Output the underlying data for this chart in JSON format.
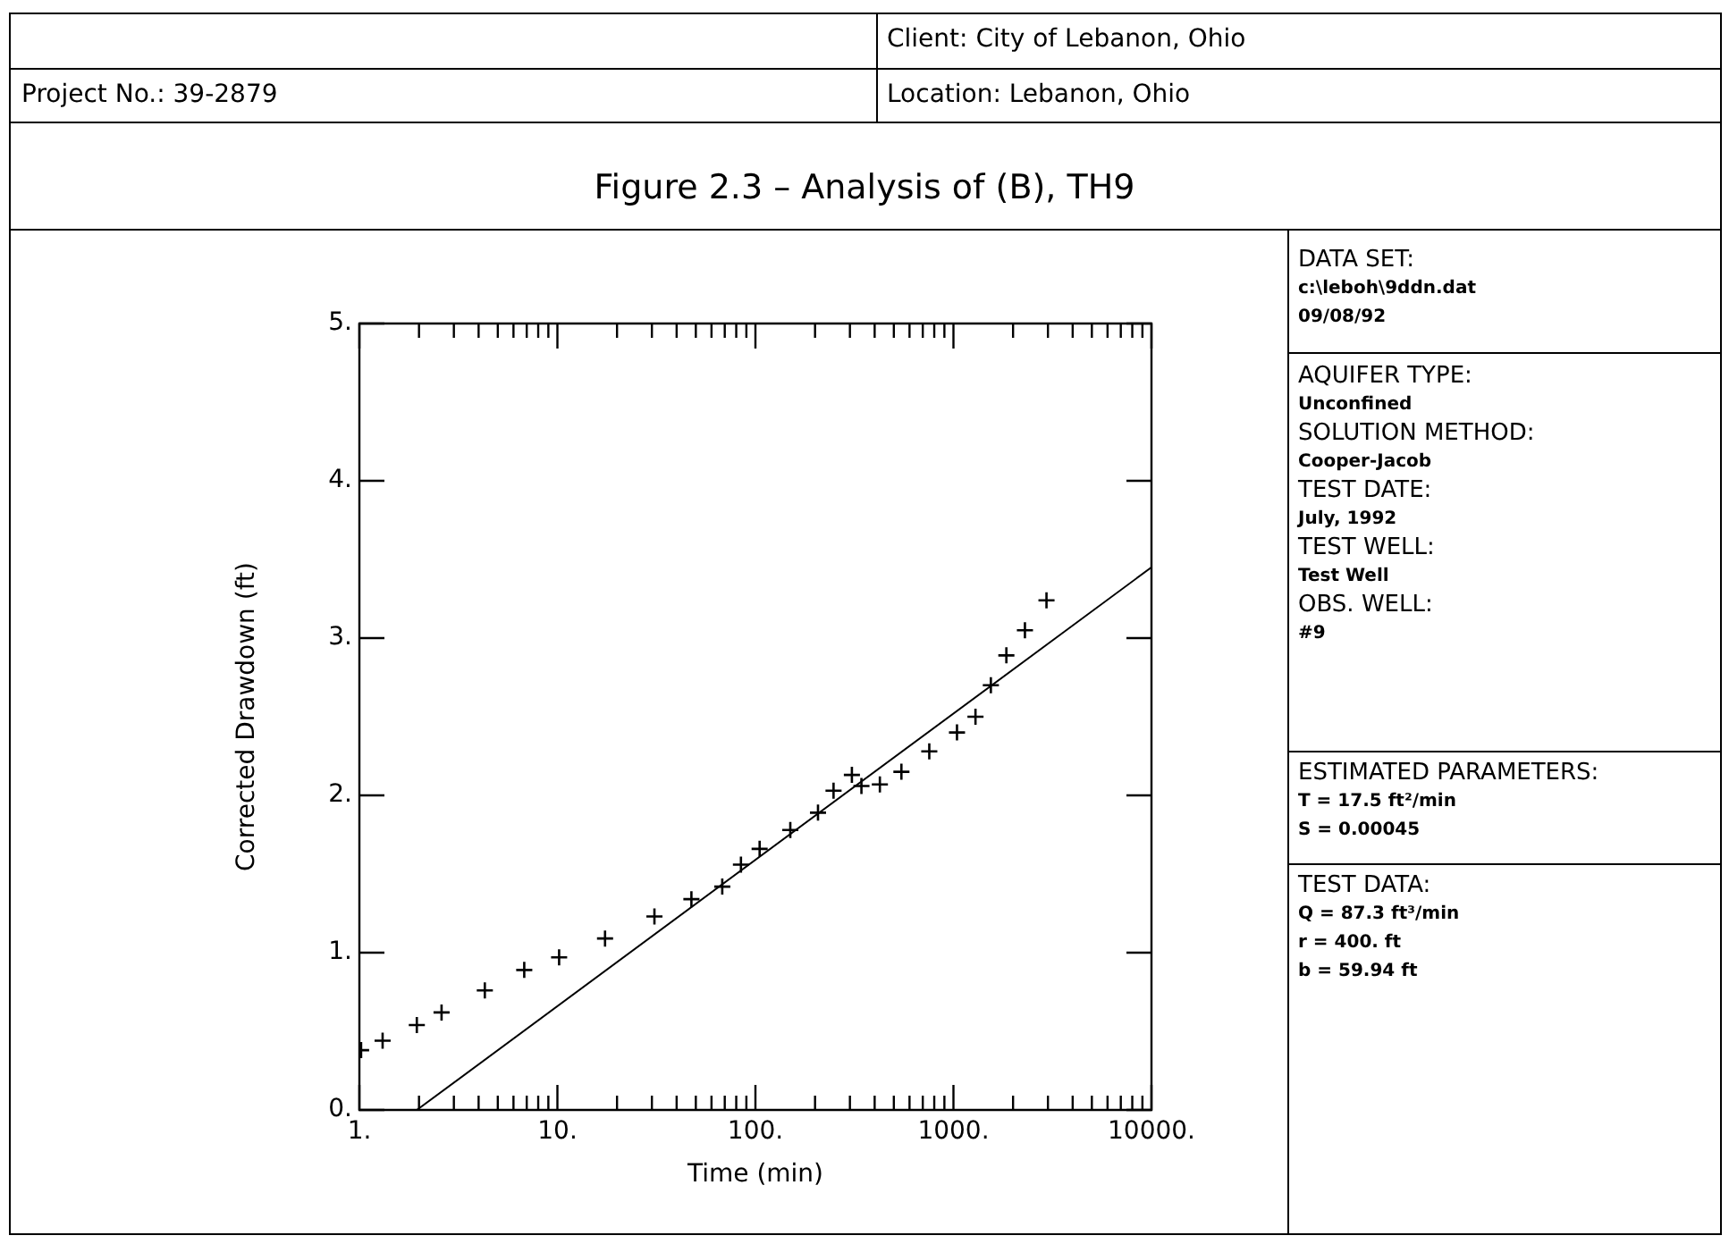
{
  "chart_data": {
    "type": "scatter",
    "title": "Figure 2.3 – Analysis of (B), TH9",
    "xlabel": "Time (min)",
    "ylabel": "Corrected Drawdown (ft)",
    "annotations": [
      "Client: City of Lebanon, Ohio",
      "Project No.: 39-2879",
      "Location: Lebanon, Ohio",
      "DATA SET:",
      "c:\\leboh\\9ddn.dat",
      "09/08/92",
      "AQUIFER TYPE:",
      "Unconfined",
      "SOLUTION METHOD:",
      "Cooper-Jacob",
      "TEST DATE:",
      "July, 1992",
      "TEST WELL:",
      "Test Well",
      "OBS. WELL:",
      "#9",
      "ESTIMATED PARAMETERS:",
      "T = 17.5 ft²/min",
      "S = 0.00045",
      "TEST DATA:",
      "Q = 87.3 ft³/min",
      "r = 400. ft",
      "b = 59.94 ft"
    ],
    "log": "x",
    "legend": false,
    "grid": false,
    "xlim": [
      1,
      10000
    ],
    "ylim": [
      0,
      5
    ],
    "xticks": [
      {
        "value": 1,
        "label": "1."
      },
      {
        "value": 2,
        "label": null
      },
      {
        "value": 3,
        "label": null
      },
      {
        "value": 4,
        "label": null
      },
      {
        "value": 5,
        "label": null
      },
      {
        "value": 6,
        "label": null
      },
      {
        "value": 7,
        "label": null
      },
      {
        "value": 8,
        "label": null
      },
      {
        "value": 9,
        "label": null
      },
      {
        "value": 10,
        "label": "10."
      },
      {
        "value": 20,
        "label": null
      },
      {
        "value": 30,
        "label": null
      },
      {
        "value": 40,
        "label": null
      },
      {
        "value": 50,
        "label": null
      },
      {
        "value": 60,
        "label": null
      },
      {
        "value": 70,
        "label": null
      },
      {
        "value": 80,
        "label": null
      },
      {
        "value": 90,
        "label": null
      },
      {
        "value": 100,
        "label": "100."
      },
      {
        "value": 200,
        "label": null
      },
      {
        "value": 300,
        "label": null
      },
      {
        "value": 400,
        "label": null
      },
      {
        "value": 500,
        "label": null
      },
      {
        "value": 600,
        "label": null
      },
      {
        "value": 700,
        "label": null
      },
      {
        "value": 800,
        "label": null
      },
      {
        "value": 900,
        "label": null
      },
      {
        "value": 1000,
        "label": "1000."
      },
      {
        "value": 2000,
        "label": null
      },
      {
        "value": 3000,
        "label": null
      },
      {
        "value": 4000,
        "label": null
      },
      {
        "value": 5000,
        "label": null
      },
      {
        "value": 6000,
        "label": null
      },
      {
        "value": 7000,
        "label": null
      },
      {
        "value": 8000,
        "label": null
      },
      {
        "value": 9000,
        "label": null
      },
      {
        "value": 10000,
        "label": "10000."
      }
    ],
    "yticks": [
      {
        "value": 0,
        "label": "0."
      },
      {
        "value": 1,
        "label": "1."
      },
      {
        "value": 2,
        "label": "2."
      },
      {
        "value": 3,
        "label": "3."
      },
      {
        "value": 4,
        "label": "4."
      },
      {
        "value": 5,
        "label": "5."
      }
    ],
    "series": [
      {
        "marker": "cross",
        "color": "#000000",
        "x": [
          1.02,
          1.31,
          1.95,
          2.6,
          4.3,
          6.8,
          10.2,
          17.4,
          30.9,
          47.5,
          68,
          84.5,
          105,
          150,
          207,
          248,
          307,
          343,
          425,
          546,
          755,
          1042,
          1292,
          1545,
          1850,
          2296,
          2950
        ],
        "values": [
          0.38,
          0.44,
          0.54,
          0.62,
          0.76,
          0.89,
          0.97,
          1.09,
          1.23,
          1.34,
          1.42,
          1.56,
          1.66,
          1.78,
          1.89,
          2.03,
          2.13,
          2.06,
          2.07,
          2.15,
          2.28,
          2.4,
          2.5,
          2.7,
          2.89,
          3.05,
          3.24
        ]
      },
      {
        "type": "line",
        "marker": "none",
        "color": "#000000",
        "x": [
          1.95,
          10000
        ],
        "values": [
          0,
          3.45
        ]
      }
    ]
  }
}
